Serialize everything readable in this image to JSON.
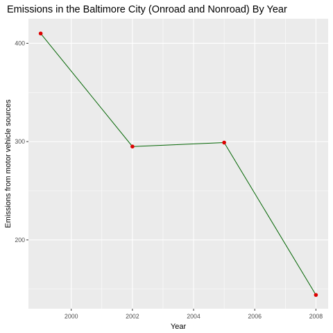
{
  "chart_data": {
    "type": "line",
    "title": "Emissions in the Baltimore City (Onroad and Nonroad) By Year",
    "xlabel": "Year",
    "ylabel": "Emissions from motor vehicle sources",
    "x": [
      1999,
      2002,
      2005,
      2008
    ],
    "series": [
      {
        "values": [
          410,
          295,
          299,
          144
        ]
      }
    ],
    "xlim": [
      1998.6,
      2008.4
    ],
    "ylim": [
      130,
      425
    ],
    "x_ticks": [
      2000,
      2002,
      2004,
      2006,
      2008
    ],
    "y_ticks": [
      200,
      300,
      400
    ],
    "x_tick_labels": [
      "2000",
      "2002",
      "2004",
      "2006",
      "2008"
    ],
    "y_tick_labels": [
      "200",
      "300",
      "400"
    ],
    "grid": true,
    "colors": {
      "panel": "#ebebeb",
      "grid_major": "#ffffff",
      "line": "#006400",
      "points": "#dd0000"
    }
  }
}
